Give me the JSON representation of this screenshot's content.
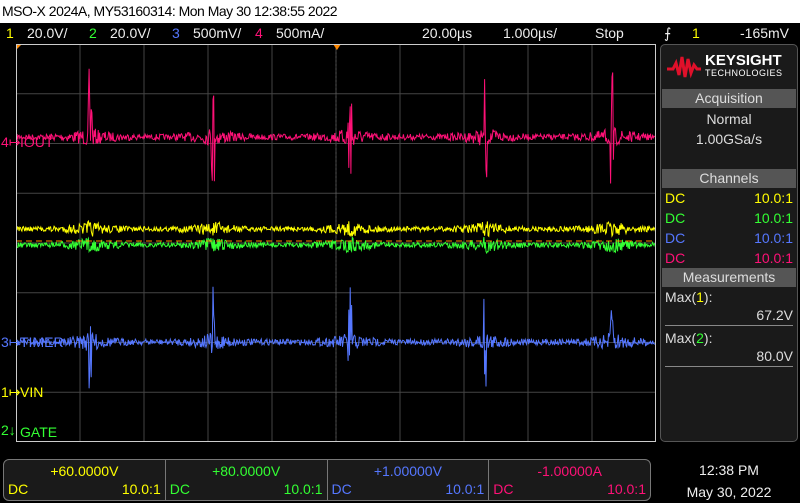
{
  "title": "MSO-X 2024A, MY53160314: Mon May 30 12:38:55 2022",
  "topbar": {
    "ch1_num": "1",
    "ch1_scale": "20.0V/",
    "ch2_num": "2",
    "ch2_scale": "20.0V/",
    "ch3_num": "3",
    "ch3_scale": "500mV/",
    "ch4_num": "4",
    "ch4_scale": "500mA/",
    "delay": "20.00µs",
    "timebase": "1.000µs/",
    "run_state": "Stop",
    "trigger_icon": "rising-edge-icon",
    "trigger_source": "1",
    "trigger_level": "-165mV"
  },
  "channels_labels": {
    "ch4": "IOUT",
    "ch3": "TIMER",
    "ch1": "VIN",
    "ch2": "GATE",
    "ch4_num": "4",
    "ch3_num": "3",
    "ch1_num": "1",
    "ch2_num": "2"
  },
  "colors": {
    "ch1": "#ffff00",
    "ch2": "#33ff33",
    "ch3": "#5577ff",
    "ch4": "#ff1177",
    "trigger": "#ff8800"
  },
  "panel": {
    "brand": "KEYSIGHT",
    "brand_sub": "TECHNOLOGIES",
    "acquisition_title": "Acquisition",
    "acq_mode": "Normal",
    "acq_rate": "1.00GSa/s",
    "channels_title": "Channels",
    "channels": [
      {
        "coupling": "DC",
        "probe": "10.0:1"
      },
      {
        "coupling": "DC",
        "probe": "10.0:1"
      },
      {
        "coupling": "DC",
        "probe": "10.0:1"
      },
      {
        "coupling": "DC",
        "probe": "10.0:1"
      }
    ],
    "measurements_title": "Measurements",
    "measurements": [
      {
        "label": "Max(",
        "ch": "1",
        "close": "):",
        "value": "67.2V"
      },
      {
        "label": "Max(",
        "ch": "2",
        "close": "):",
        "value": "80.0V"
      }
    ]
  },
  "bottom": [
    {
      "offset": "+60.0000V",
      "coupling": "DC",
      "probe": "10.0:1"
    },
    {
      "offset": "+80.0000V",
      "coupling": "DC",
      "probe": "10.0:1"
    },
    {
      "offset": "+1.00000V",
      "coupling": "DC",
      "probe": "10.0:1"
    },
    {
      "offset": "-1.00000A",
      "coupling": "DC",
      "probe": "10.0:1"
    }
  ],
  "clock": {
    "time": "12:38 PM",
    "date": "May 30, 2022"
  }
}
